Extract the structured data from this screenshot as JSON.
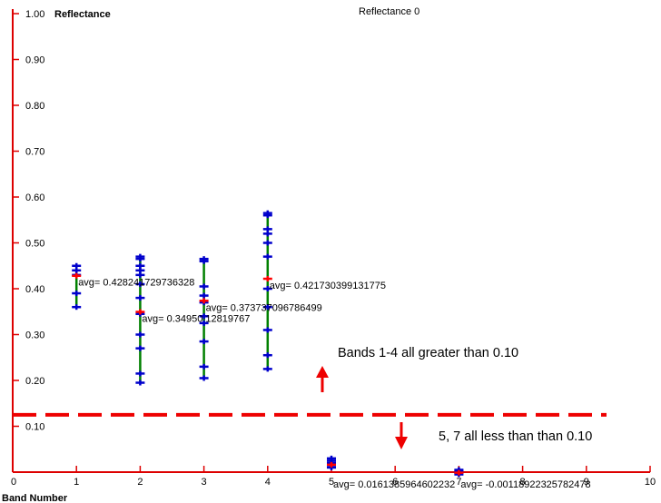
{
  "chart_data": {
    "type": "scatter",
    "title": "Reflectance  0",
    "ylabel": "Reflectance",
    "xlabel": "Band Number",
    "xlim": [
      0,
      10
    ],
    "ylim": [
      0,
      1.0
    ],
    "x_ticks": [
      "0",
      "1",
      "2",
      "3",
      "4",
      "5",
      "6",
      "7",
      "8",
      "9",
      "10"
    ],
    "y_ticks": [
      "0.10",
      "0.20",
      "0.30",
      "0.40",
      "0.50",
      "0.60",
      "0.70",
      "0.80",
      "0.90",
      "1.00"
    ],
    "bands": [
      {
        "band": 1,
        "avg": 0.428241729736328,
        "avg_label": "avg= 0.428241729736328",
        "points": [
          0.36,
          0.39,
          0.43,
          0.44,
          0.45
        ]
      },
      {
        "band": 2,
        "avg": 0.349501281976,
        "avg_label": "avg= 0.34950 12819767",
        "points": [
          0.195,
          0.215,
          0.27,
          0.3,
          0.345,
          0.38,
          0.41,
          0.43,
          0.44,
          0.45,
          0.465,
          0.47
        ]
      },
      {
        "band": 3,
        "avg": 0.373737096786499,
        "avg_label": "avg= 0.373737096786499",
        "points": [
          0.205,
          0.23,
          0.285,
          0.325,
          0.34,
          0.37,
          0.385,
          0.405,
          0.46,
          0.465
        ]
      },
      {
        "band": 4,
        "avg": 0.421730399131775,
        "avg_label": "avg= 0.421730399131775",
        "points": [
          0.225,
          0.255,
          0.31,
          0.36,
          0.4,
          0.47,
          0.5,
          0.52,
          0.53,
          0.56,
          0.565
        ]
      },
      {
        "band": 5,
        "avg": 0.016138596460223,
        "avg_label": "avg= 0.0161385964602232",
        "points": [
          0.01,
          0.015,
          0.02,
          0.025,
          0.03
        ]
      },
      {
        "band": 7,
        "avg": -0.0011892232578248,
        "avg_label": "avg= -0.00118922325782478",
        "points": [
          -0.005,
          -0.002,
          0.0,
          0.003,
          0.005
        ]
      }
    ],
    "threshold": 0.125,
    "annotations": {
      "above": "Bands 1-4 all greater than 0.10",
      "below": "5, 7 all less than than 0.10"
    },
    "colors": {
      "axis": "#dd0000",
      "point": "#0000cc",
      "avg": "#ff0000",
      "range": "#008000",
      "threshold": "#ee0000"
    }
  }
}
